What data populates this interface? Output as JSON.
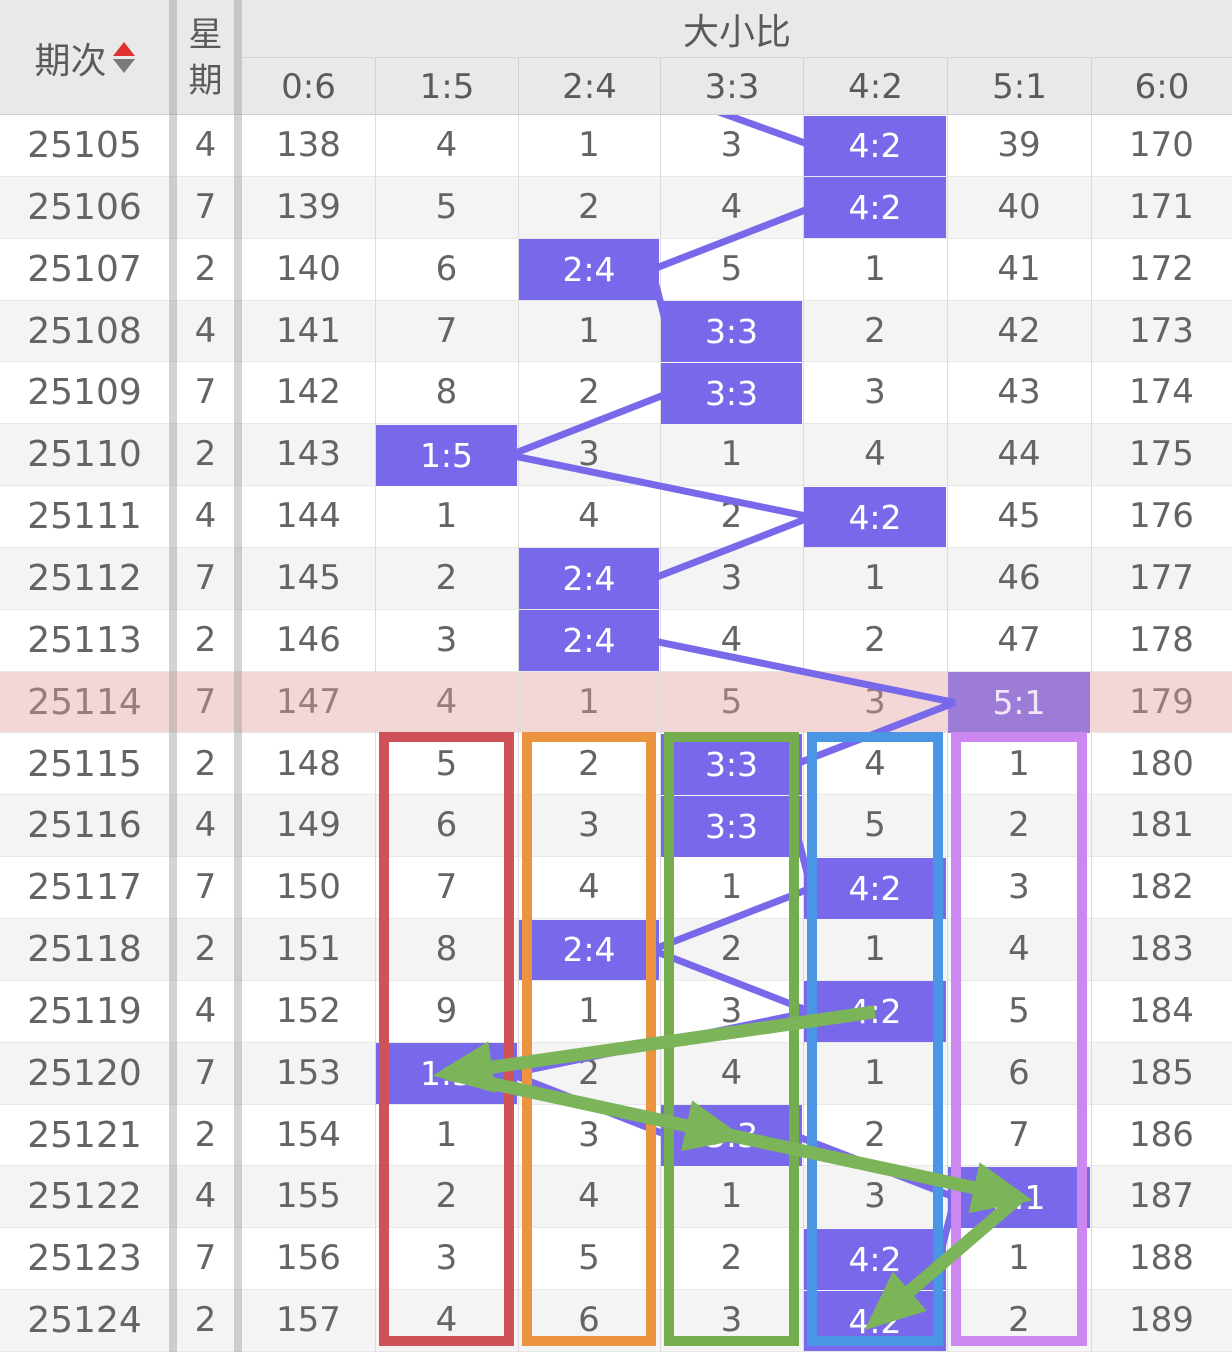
{
  "table": {
    "period_header": "期次",
    "week_header": "星期",
    "group_header": "大小比",
    "ratio_columns": [
      "0:6",
      "1:5",
      "2:4",
      "3:3",
      "4:2",
      "5:1",
      "6:0"
    ],
    "rows": [
      {
        "period": "25105",
        "week": "4",
        "cells": [
          "138",
          "4",
          "1",
          "3",
          "4:2",
          "39",
          "170"
        ],
        "hit": 4,
        "special": false
      },
      {
        "period": "25106",
        "week": "7",
        "cells": [
          "139",
          "5",
          "2",
          "4",
          "4:2",
          "40",
          "171"
        ],
        "hit": 4,
        "special": false
      },
      {
        "period": "25107",
        "week": "2",
        "cells": [
          "140",
          "6",
          "2:4",
          "5",
          "1",
          "41",
          "172"
        ],
        "hit": 2,
        "special": false
      },
      {
        "period": "25108",
        "week": "4",
        "cells": [
          "141",
          "7",
          "1",
          "3:3",
          "2",
          "42",
          "173"
        ],
        "hit": 3,
        "special": false
      },
      {
        "period": "25109",
        "week": "7",
        "cells": [
          "142",
          "8",
          "2",
          "3:3",
          "3",
          "43",
          "174"
        ],
        "hit": 3,
        "special": false
      },
      {
        "period": "25110",
        "week": "2",
        "cells": [
          "143",
          "1:5",
          "3",
          "1",
          "4",
          "44",
          "175"
        ],
        "hit": 1,
        "special": false
      },
      {
        "period": "25111",
        "week": "4",
        "cells": [
          "144",
          "1",
          "4",
          "2",
          "4:2",
          "45",
          "176"
        ],
        "hit": 4,
        "special": false
      },
      {
        "period": "25112",
        "week": "7",
        "cells": [
          "145",
          "2",
          "2:4",
          "3",
          "1",
          "46",
          "177"
        ],
        "hit": 2,
        "special": false
      },
      {
        "period": "25113",
        "week": "2",
        "cells": [
          "146",
          "3",
          "2:4",
          "4",
          "2",
          "47",
          "178"
        ],
        "hit": 2,
        "special": false
      },
      {
        "period": "25114",
        "week": "7",
        "cells": [
          "147",
          "4",
          "1",
          "5",
          "3",
          "5:1",
          "179"
        ],
        "hit": 5,
        "special": true
      },
      {
        "period": "25115",
        "week": "2",
        "cells": [
          "148",
          "5",
          "2",
          "3:3",
          "4",
          "1",
          "180"
        ],
        "hit": 3,
        "special": false
      },
      {
        "period": "25116",
        "week": "4",
        "cells": [
          "149",
          "6",
          "3",
          "3:3",
          "5",
          "2",
          "181"
        ],
        "hit": 3,
        "special": false
      },
      {
        "period": "25117",
        "week": "7",
        "cells": [
          "150",
          "7",
          "4",
          "1",
          "4:2",
          "3",
          "182"
        ],
        "hit": 4,
        "special": false
      },
      {
        "period": "25118",
        "week": "2",
        "cells": [
          "151",
          "8",
          "2:4",
          "2",
          "1",
          "4",
          "183"
        ],
        "hit": 2,
        "special": false
      },
      {
        "period": "25119",
        "week": "4",
        "cells": [
          "152",
          "9",
          "1",
          "3",
          "4:2",
          "5",
          "184"
        ],
        "hit": 4,
        "special": false
      },
      {
        "period": "25120",
        "week": "7",
        "cells": [
          "153",
          "1:5",
          "2",
          "4",
          "1",
          "6",
          "185"
        ],
        "hit": 1,
        "special": false
      },
      {
        "period": "25121",
        "week": "2",
        "cells": [
          "154",
          "1",
          "3",
          "3:3",
          "2",
          "7",
          "186"
        ],
        "hit": 3,
        "special": false
      },
      {
        "period": "25122",
        "week": "4",
        "cells": [
          "155",
          "2",
          "4",
          "1",
          "3",
          "5:1",
          "187"
        ],
        "hit": 5,
        "special": false
      },
      {
        "period": "25123",
        "week": "7",
        "cells": [
          "156",
          "3",
          "5",
          "2",
          "4:2",
          "1",
          "188"
        ],
        "hit": 4,
        "special": false
      },
      {
        "period": "25124",
        "week": "2",
        "cells": [
          "157",
          "4",
          "6",
          "3",
          "4:2",
          "2",
          "189"
        ],
        "hit": 4,
        "special": false
      }
    ]
  },
  "colors": {
    "hit_cell": "#7869eb",
    "hit_cell_on_special": "#9c7cd6",
    "hit_text": "#ffffff",
    "hit_text_on_special": "#f1e6f7",
    "connection_line": "#7869eb",
    "special_row_bg": "#f3d7d7",
    "special_row_text": "#9a7b7e",
    "stripe_bg": "#f4f4f4",
    "header_bg": "#e9e9e9",
    "text": "#646464",
    "sort_up": "#e03131",
    "sort_down": "#7a7a7a",
    "arrow": "#7cb45a"
  },
  "annotations": {
    "rects": [
      {
        "column": "1:5",
        "color_name": "red",
        "color": "#cf5258"
      },
      {
        "column": "2:4",
        "color_name": "orange",
        "color": "#ec9340"
      },
      {
        "column": "3:3",
        "color_name": "green",
        "color": "#74ad50"
      },
      {
        "column": "4:2",
        "color_name": "blue",
        "color": "#4a96e4"
      },
      {
        "column": "5:1",
        "color_name": "violet",
        "color": "#cd87f0"
      }
    ],
    "rect_row_span": {
      "from_period": "25115",
      "to_period": "25124"
    },
    "arrows": [
      {
        "from_period": "25119",
        "from_column": "4:2",
        "to_period": "25120",
        "to_column": "1:5"
      },
      {
        "from_period": "25120",
        "from_column": "1:5",
        "to_period": "25121",
        "to_column": "3:3"
      },
      {
        "from_period": "25121",
        "from_column": "3:3",
        "to_period": "25122",
        "to_column": "5:1"
      },
      {
        "from_period": "25122",
        "from_column": "5:1",
        "to_period": "25124",
        "to_column": "4:2"
      }
    ]
  }
}
